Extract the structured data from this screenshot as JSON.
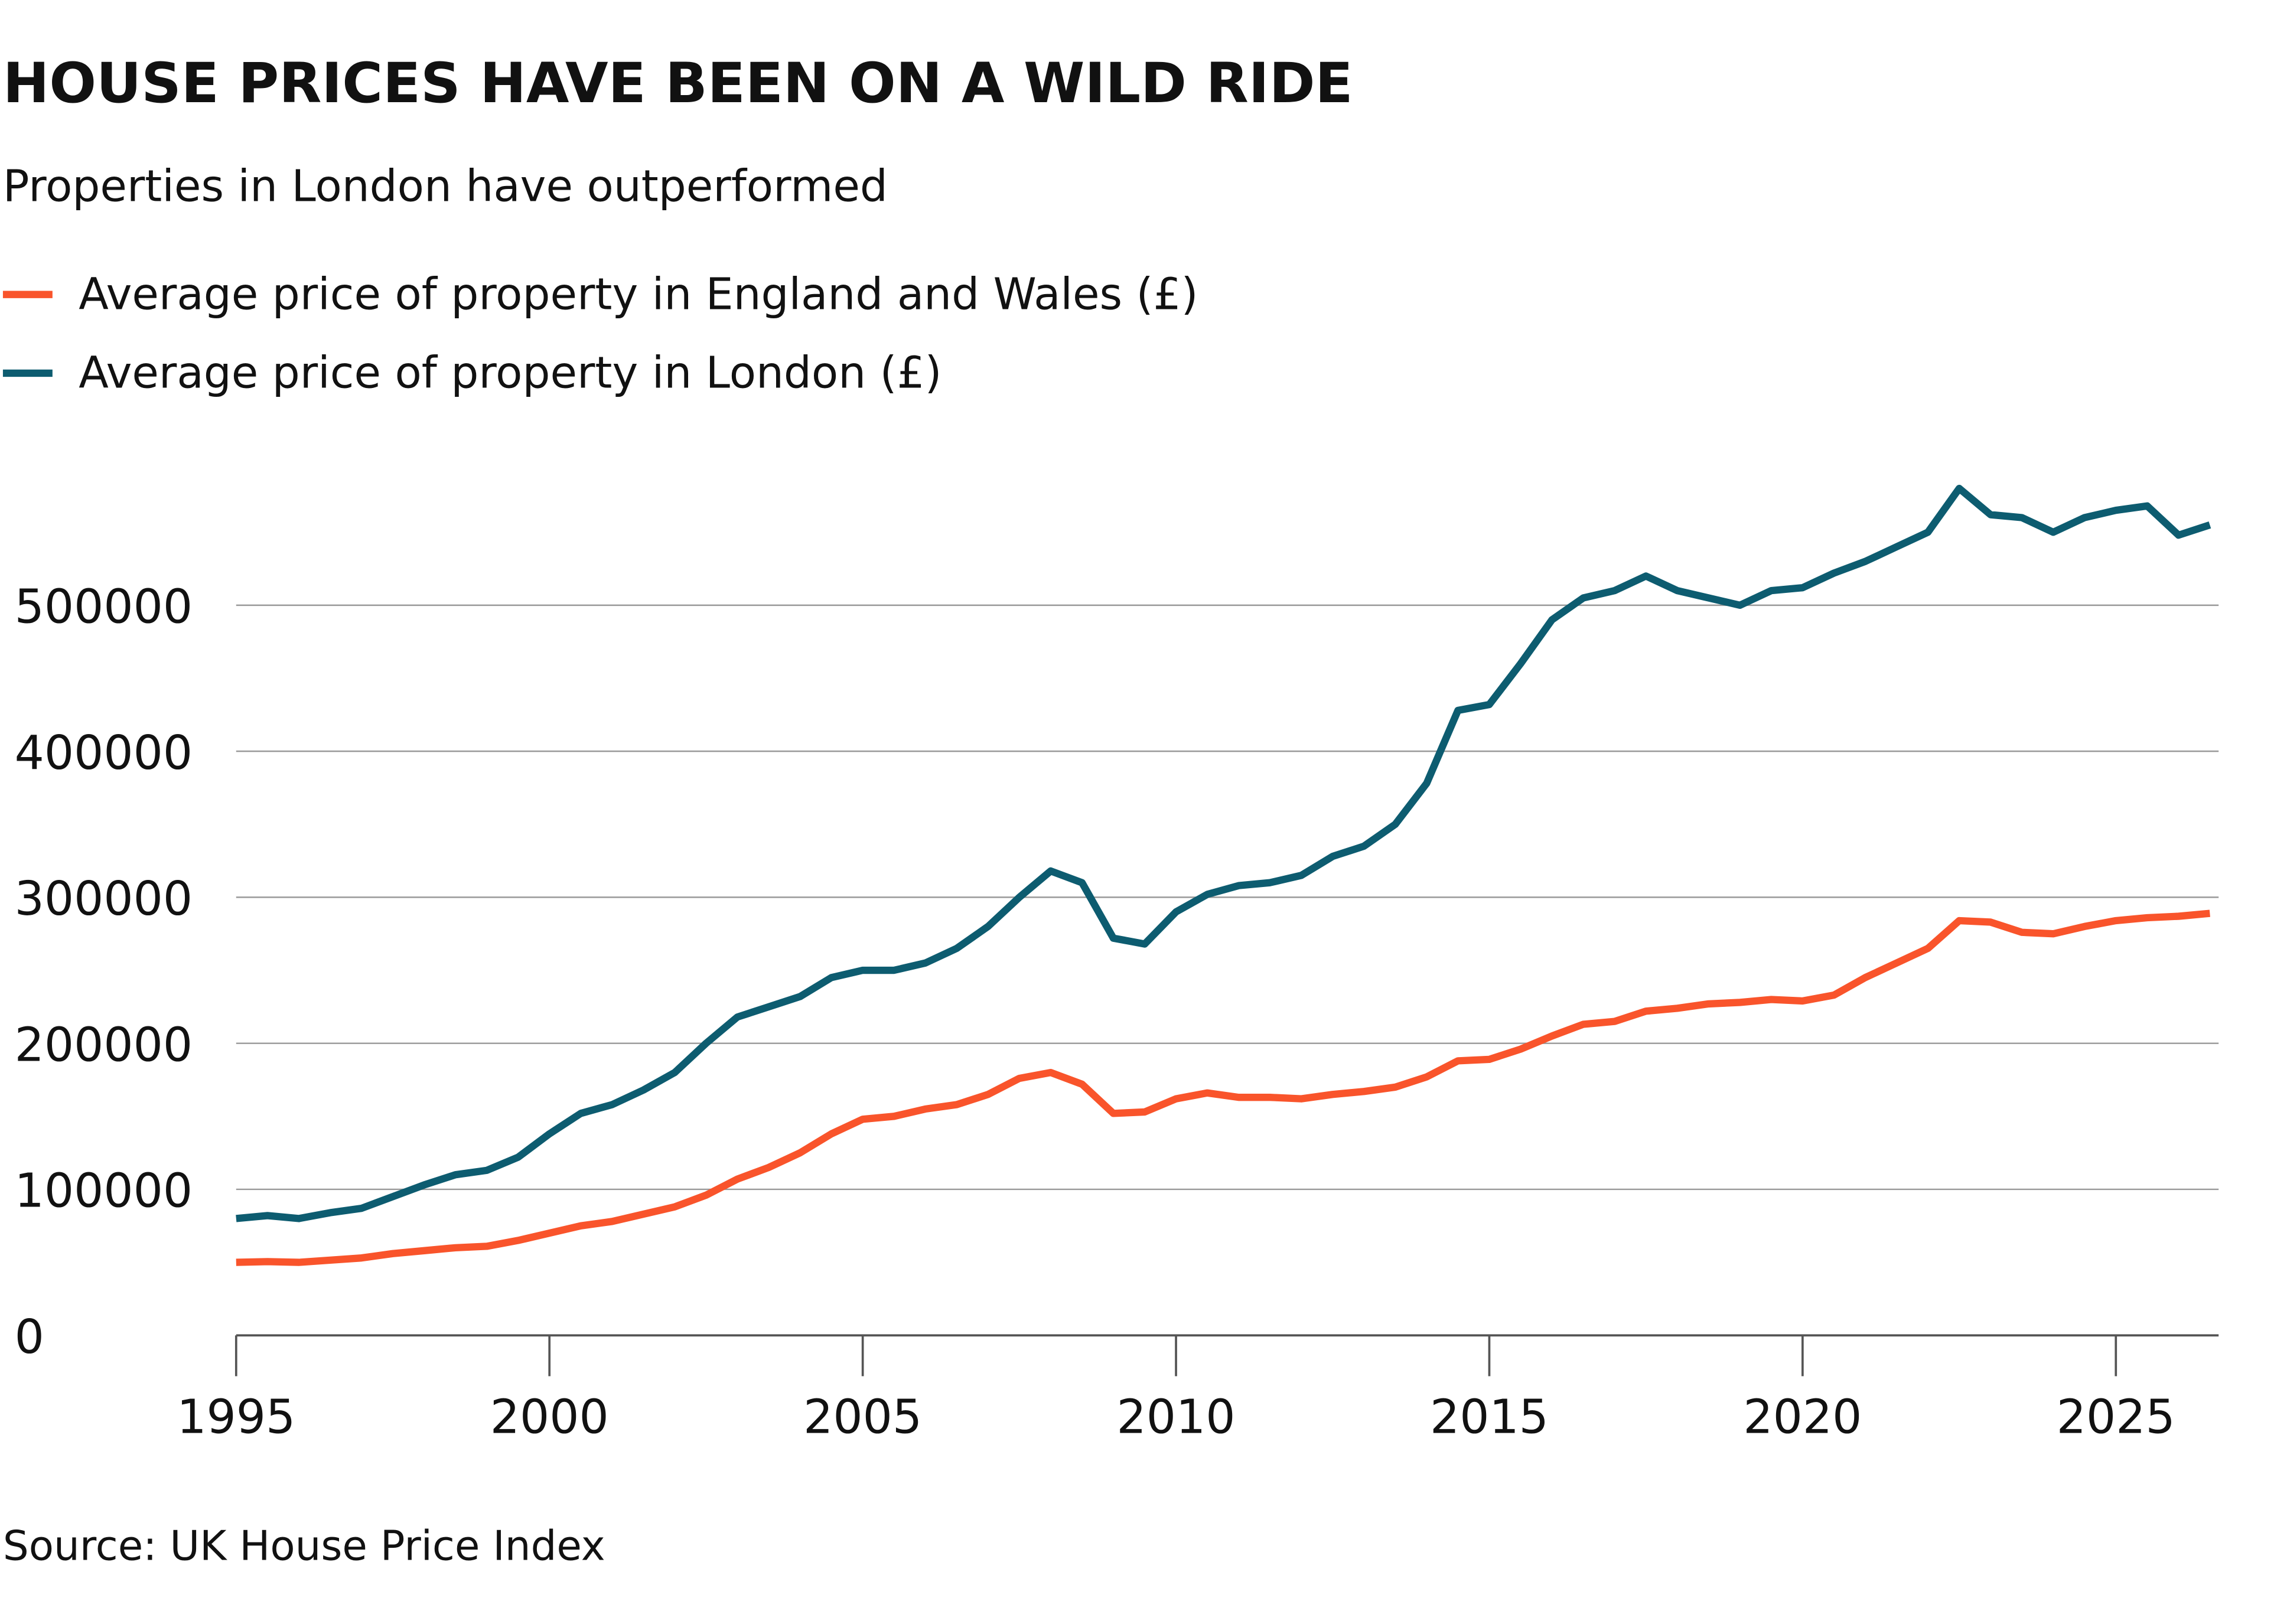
{
  "chart_data": {
    "type": "line",
    "title": "HOUSE PRICES HAVE BEEN ON A WILD RIDE",
    "subtitle": "Properties in London have outperformed",
    "source": "Source: UK House Price Index",
    "x": [
      1995,
      1995.5,
      1996,
      1996.5,
      1997,
      1997.5,
      1998,
      1998.5,
      1999,
      1999.5,
      2000,
      2000.5,
      2001,
      2001.5,
      2002,
      2002.5,
      2003,
      2003.5,
      2004,
      2004.5,
      2005,
      2005.5,
      2006,
      2006.5,
      2007,
      2007.5,
      2008,
      2008.5,
      2009,
      2009.5,
      2010,
      2010.5,
      2011,
      2011.5,
      2012,
      2012.5,
      2013,
      2013.5,
      2014,
      2014.5,
      2015,
      2015.5,
      2016,
      2016.5,
      2017,
      2017.5,
      2018,
      2018.5,
      2019,
      2019.5,
      2020,
      2020.5,
      2021,
      2021.5,
      2022,
      2022.5,
      2023,
      2023.5,
      2024,
      2024.5,
      2025,
      2025.5,
      2026,
      2026.5
    ],
    "series": [
      {
        "name": "Average price of property in England and Wales (£)",
        "color": "#f9542b",
        "values": [
          50000,
          50500,
          50000,
          51500,
          53000,
          56000,
          58000,
          60000,
          61000,
          65000,
          70000,
          75000,
          78000,
          83000,
          88000,
          96000,
          107000,
          115000,
          125000,
          138000,
          148000,
          150000,
          155000,
          158000,
          165000,
          176000,
          180000,
          172000,
          152000,
          153000,
          162000,
          166000,
          163000,
          163000,
          162000,
          165000,
          167000,
          170000,
          177000,
          188000,
          189000,
          196000,
          205000,
          213000,
          215000,
          222000,
          224000,
          227000,
          228000,
          230000,
          229000,
          233000,
          245000,
          255000,
          265000,
          284000,
          283000,
          276000,
          275000,
          280000,
          284000,
          286000,
          287000,
          289000
        ]
      },
      {
        "name": "Average price of property in London (£)",
        "color": "#0d5c70",
        "values": [
          80000,
          82000,
          80000,
          84000,
          87000,
          95000,
          103000,
          110000,
          113000,
          122000,
          138000,
          152000,
          158000,
          168000,
          180000,
          200000,
          218000,
          225000,
          232000,
          245000,
          250000,
          250000,
          255000,
          265000,
          280000,
          300000,
          318000,
          310000,
          272000,
          268000,
          290000,
          302000,
          308000,
          310000,
          315000,
          328000,
          335000,
          350000,
          378000,
          428000,
          432000,
          460000,
          490000,
          505000,
          510000,
          520000,
          510000,
          505000,
          500000,
          510000,
          512000,
          522000,
          530000,
          540000,
          550000,
          580000,
          562000,
          560000,
          550000,
          560000,
          565000,
          568000,
          548000,
          555000
        ]
      }
    ],
    "xlim": [
      1995,
      2026.5
    ],
    "xticks": [
      1995,
      2000,
      2005,
      2010,
      2015,
      2020,
      2025
    ],
    "ylim": [
      0,
      600000
    ],
    "yticks": [
      0,
      100000,
      200000,
      300000,
      400000,
      500000
    ],
    "grid": true
  }
}
